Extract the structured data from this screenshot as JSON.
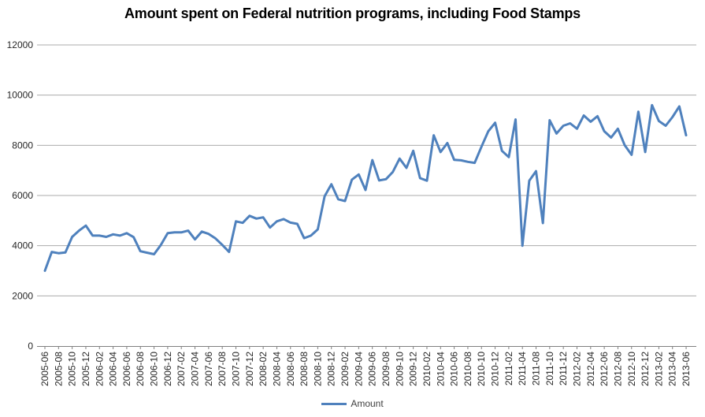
{
  "title": "Amount spent on Federal nutrition programs, including Food Stamps",
  "legend": {
    "label": "Amount",
    "position": "bottom-center"
  },
  "colors": {
    "line": "#4F81BD",
    "gridline": "#ABABAB",
    "axis": "#808080",
    "tick_label": "#262626",
    "title": "#000000",
    "background": "#FFFFFF"
  },
  "chart_data": {
    "type": "line",
    "title": "Amount spent on Federal nutrition programs, including Food Stamps",
    "xlabel": "",
    "ylabel": "",
    "ylim": [
      0,
      12000
    ],
    "ytick_interval": 2000,
    "yticks": [
      0,
      2000,
      4000,
      6000,
      8000,
      10000,
      12000
    ],
    "grid": "horizontal",
    "x_label_rotation": -90,
    "x_label_every": 2,
    "legend_position": "bottom-center",
    "categories": [
      "2005-06",
      "2005-07",
      "2005-08",
      "2005-09",
      "2005-10",
      "2005-11",
      "2005-12",
      "2006-01",
      "2006-02",
      "2006-03",
      "2006-04",
      "2006-05",
      "2006-06",
      "2006-07",
      "2006-08",
      "2006-09",
      "2006-10",
      "2006-11",
      "2006-12",
      "2007-01",
      "2007-02",
      "2007-03",
      "2007-04",
      "2007-05",
      "2007-06",
      "2007-07",
      "2007-08",
      "2007-09",
      "2007-10",
      "2007-11",
      "2007-12",
      "2008-01",
      "2008-02",
      "2008-03",
      "2008-04",
      "2008-05",
      "2008-06",
      "2008-07",
      "2008-08",
      "2008-09",
      "2008-10",
      "2008-11",
      "2008-12",
      "2009-01",
      "2009-02",
      "2009-03",
      "2009-04",
      "2009-05",
      "2009-06",
      "2009-07",
      "2009-08",
      "2009-09",
      "2009-10",
      "2009-11",
      "2009-12",
      "2010-01",
      "2010-02",
      "2010-03",
      "2010-04",
      "2010-05",
      "2010-06",
      "2010-07",
      "2010-08",
      "2010-09",
      "2010-10",
      "2010-11",
      "2010-12",
      "2011-01",
      "2011-02",
      "2011-03",
      "2011-04",
      "2011-07",
      "2011-08",
      "2011-09",
      "2011-10",
      "2011-11",
      "2011-12",
      "2012-01",
      "2012-02",
      "2012-03",
      "2012-04",
      "2012-05",
      "2012-06",
      "2012-07",
      "2012-08",
      "2012-09",
      "2012-10",
      "2012-11",
      "2012-12",
      "2013-01",
      "2013-02",
      "2013-03",
      "2013-04",
      "2013-05",
      "2013-06"
    ],
    "series": [
      {
        "name": "Amount",
        "values": [
          3000,
          3750,
          3700,
          3730,
          4350,
          4600,
          4800,
          4400,
          4400,
          4350,
          4450,
          4400,
          4500,
          4340,
          3780,
          3720,
          3660,
          4030,
          4500,
          4530,
          4530,
          4600,
          4250,
          4560,
          4470,
          4290,
          4030,
          3750,
          4970,
          4910,
          5190,
          5080,
          5130,
          4720,
          4970,
          5060,
          4920,
          4870,
          4300,
          4400,
          4650,
          5970,
          6450,
          5850,
          5780,
          6630,
          6840,
          6220,
          7410,
          6600,
          6650,
          6940,
          7470,
          7100,
          7780,
          6690,
          6590,
          8400,
          7730,
          8090,
          7420,
          7400,
          7340,
          7300,
          7940,
          8560,
          8900,
          7780,
          7530,
          9030,
          4000,
          6590,
          6970,
          4900,
          9000,
          8470,
          8780,
          8875,
          8660,
          9190,
          8940,
          9160,
          8560,
          8310,
          8660,
          8000,
          7620,
          9340,
          7730,
          9600,
          8970,
          8780,
          9125,
          9550,
          8400
        ]
      }
    ]
  }
}
